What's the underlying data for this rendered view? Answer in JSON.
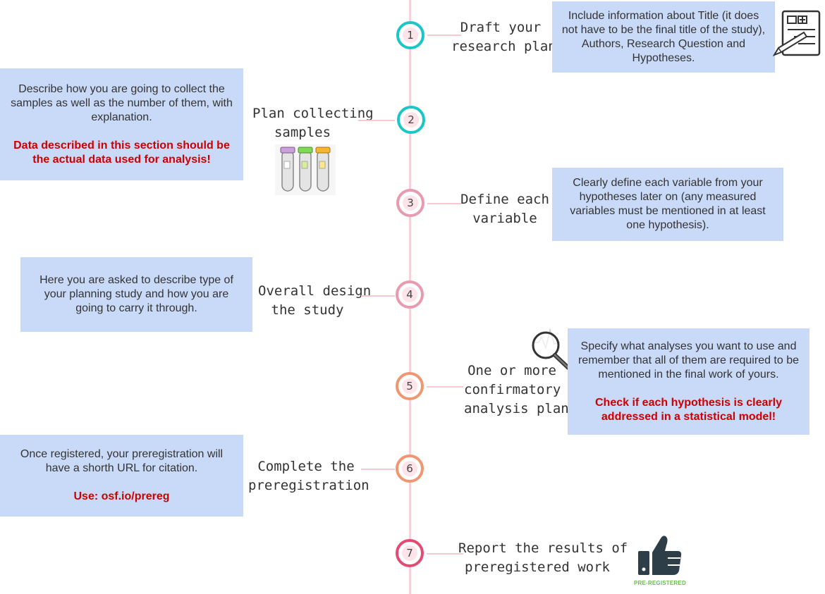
{
  "steps": [
    {
      "number": "1",
      "title_line1": "Draft your",
      "title_line2": "research plan",
      "color": "#1cc6c6"
    },
    {
      "number": "2",
      "title_line1": "Plan collecting",
      "title_line2": "samples",
      "color": "#1cc6c6"
    },
    {
      "number": "3",
      "title_line1": "Define each",
      "title_line2": "variable",
      "color": "#e79ab0"
    },
    {
      "number": "4",
      "title_line1": "Overall design",
      "title_line2": "the study",
      "color": "#e79ab0"
    },
    {
      "number": "5",
      "title_line1": "One or more",
      "title_line2": "confirmatory",
      "title_line3": "analysis plan",
      "color": "#f09670"
    },
    {
      "number": "6",
      "title_line1": "Complete the",
      "title_line2": "preregistration",
      "color": "#f09670"
    },
    {
      "number": "7",
      "title_line1": "Report the results of",
      "title_line2": "preregistered work",
      "color": "#e44a72"
    }
  ],
  "boxes": {
    "step1": {
      "text": "Include information about Title (it does not have to be the final title of the study), Authors, Research Question and Hypotheses."
    },
    "step2": {
      "text": "Describe how you are going to collect the samples as well as the number of them, with explanation.",
      "note": "Data described in this section should be the actual data used for analysis!"
    },
    "step3": {
      "text": "Clearly define each variable from your hypotheses later on (any measured variables must be mentioned in at least one hypothesis)."
    },
    "step4": {
      "text": "Here you are asked to describe type of your planning study and how you are going to carry it through."
    },
    "step5": {
      "text": "Specify what analyses you want to use and remember that all of them are required to be mentioned in the final work of yours.",
      "note": "Check if each hypothesis is clearly addressed in a statistical model!"
    },
    "step6": {
      "text": "Once registered, your preregistration will have a shorth URL for citation.",
      "note": "Use: osf.io/prereg"
    }
  },
  "badge": {
    "label": "PRE-REGISTERED"
  },
  "icons": [
    "document-pencil-icon",
    "test-tubes-icon",
    "magnifier-chart-icon",
    "thumbs-up-icon"
  ]
}
